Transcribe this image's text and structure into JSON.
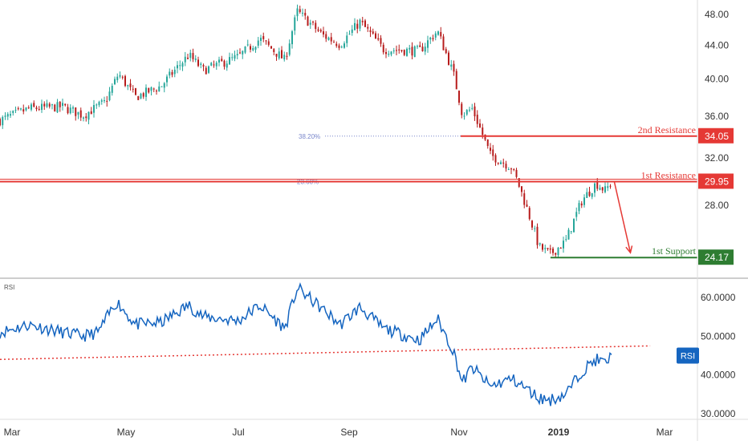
{
  "colors": {
    "up": "#26a69a",
    "down": "#b71c1c",
    "resistance": "#e53935",
    "support": "#2e7d32",
    "rsi_line": "#1565c0",
    "rsi_trend": "#e53935",
    "fib": "#7986cb",
    "axis_text": "#333333",
    "divider": "#9e9e9e"
  },
  "chart_data": [
    {
      "type": "candlestick",
      "panel": "price",
      "x_labels": [
        "Mar",
        "May",
        "Jul",
        "Sep",
        "Nov",
        "2019",
        "Mar"
      ],
      "y_ticks": [
        "48.00",
        "44.00",
        "40.00",
        "36.00",
        "32.00",
        "28.00"
      ],
      "ylim": [
        22.8,
        50
      ],
      "y_scale": "log",
      "close_path": [
        {
          "date": "2018-02-21",
          "close": 35.6
        },
        {
          "date": "2018-03-10",
          "close": 36.8
        },
        {
          "date": "2018-03-28",
          "close": 37.0
        },
        {
          "date": "2018-04-08",
          "close": 36.1
        },
        {
          "date": "2018-04-20",
          "close": 37.5
        },
        {
          "date": "2018-04-27",
          "close": 40.6
        },
        {
          "date": "2018-05-06",
          "close": 38.0
        },
        {
          "date": "2018-05-20",
          "close": 39.2
        },
        {
          "date": "2018-06-04",
          "close": 42.8
        },
        {
          "date": "2018-06-12",
          "close": 41.0
        },
        {
          "date": "2018-07-01",
          "close": 42.6
        },
        {
          "date": "2018-07-13",
          "close": 44.8
        },
        {
          "date": "2018-07-27",
          "close": 42.2
        },
        {
          "date": "2018-08-03",
          "close": 48.4
        },
        {
          "date": "2018-08-17",
          "close": 45.3
        },
        {
          "date": "2018-08-27",
          "close": 44.1
        },
        {
          "date": "2018-09-07",
          "close": 47.0
        },
        {
          "date": "2018-09-20",
          "close": 43.5
        },
        {
          "date": "2018-10-10",
          "close": 43.3
        },
        {
          "date": "2018-10-20",
          "close": 45.8
        },
        {
          "date": "2018-10-29",
          "close": 40.5
        },
        {
          "date": "2018-11-03",
          "close": 36.2
        },
        {
          "date": "2018-11-09",
          "close": 36.8
        },
        {
          "date": "2018-11-20",
          "close": 32.3
        },
        {
          "date": "2018-12-03",
          "close": 31.2
        },
        {
          "date": "2018-12-07",
          "close": 29.9
        },
        {
          "date": "2018-12-20",
          "close": 24.9
        },
        {
          "date": "2018-12-27",
          "close": 24.4
        },
        {
          "date": "2019-01-05",
          "close": 25.3
        },
        {
          "date": "2019-01-14",
          "close": 28.4
        },
        {
          "date": "2019-01-22",
          "close": 29.8
        },
        {
          "date": "2019-01-27",
          "close": 29.2
        },
        {
          "date": "2019-01-31",
          "close": 30.0
        }
      ],
      "levels": [
        {
          "label": "2nd Resistance",
          "value": "34.05",
          "start": "2018-11-02",
          "kind": "resistance"
        },
        {
          "label": "1st Resistance",
          "value": "29.95",
          "start": "2018-02-21",
          "kind": "resistance"
        },
        {
          "label": "1st Support",
          "value": "24.17",
          "start": "2018-12-27",
          "kind": "support"
        }
      ],
      "fib_levels": [
        {
          "label": "38.20%",
          "value": 34.05
        },
        {
          "label": "23.60%",
          "value": 29.95
        }
      ],
      "projection": {
        "from": {
          "date": "2019-02-01",
          "value": 29.95
        },
        "to": {
          "date": "2019-02-10",
          "value": 24.5
        }
      }
    },
    {
      "type": "line",
      "panel": "rsi",
      "title": "RSI",
      "badge": "RSI",
      "y_ticks": [
        "60.0000",
        "50.0000",
        "40.0000",
        "30.0000"
      ],
      "ylim": [
        28.5,
        65
      ],
      "series": [
        {
          "points": [
            {
              "date": "2018-02-21",
              "rsi": 51
            },
            {
              "date": "2018-03-10",
              "rsi": 53
            },
            {
              "date": "2018-03-28",
              "rsi": 51
            },
            {
              "date": "2018-04-08",
              "rsi": 50
            },
            {
              "date": "2018-04-16",
              "rsi": 51
            },
            {
              "date": "2018-04-26",
              "rsi": 59
            },
            {
              "date": "2018-05-06",
              "rsi": 53
            },
            {
              "date": "2018-05-20",
              "rsi": 53.5
            },
            {
              "date": "2018-06-04",
              "rsi": 58
            },
            {
              "date": "2018-06-12",
              "rsi": 55
            },
            {
              "date": "2018-07-01",
              "rsi": 54
            },
            {
              "date": "2018-07-13",
              "rsi": 58
            },
            {
              "date": "2018-07-27",
              "rsi": 52
            },
            {
              "date": "2018-08-03",
              "rsi": 62.5
            },
            {
              "date": "2018-08-17",
              "rsi": 57
            },
            {
              "date": "2018-08-27",
              "rsi": 53
            },
            {
              "date": "2018-09-07",
              "rsi": 57.5
            },
            {
              "date": "2018-09-20",
              "rsi": 52
            },
            {
              "date": "2018-10-10",
              "rsi": 49
            },
            {
              "date": "2018-10-20",
              "rsi": 54.5
            },
            {
              "date": "2018-10-29",
              "rsi": 46
            },
            {
              "date": "2018-11-03",
              "rsi": 38
            },
            {
              "date": "2018-11-09",
              "rsi": 42
            },
            {
              "date": "2018-11-20",
              "rsi": 37
            },
            {
              "date": "2018-12-03",
              "rsi": 39
            },
            {
              "date": "2018-12-07",
              "rsi": 38
            },
            {
              "date": "2018-12-20",
              "rsi": 34
            },
            {
              "date": "2018-12-27",
              "rsi": 33.5
            },
            {
              "date": "2019-01-05",
              "rsi": 35
            },
            {
              "date": "2019-01-14",
              "rsi": 41
            },
            {
              "date": "2019-01-22",
              "rsi": 44
            },
            {
              "date": "2019-01-27",
              "rsi": 43
            },
            {
              "date": "2019-01-31",
              "rsi": 45
            }
          ]
        }
      ],
      "trendline": {
        "start": {
          "date": "2018-02-21",
          "rsi": 44
        },
        "end": {
          "date": "2019-02-21",
          "rsi": 47.5
        }
      }
    }
  ]
}
